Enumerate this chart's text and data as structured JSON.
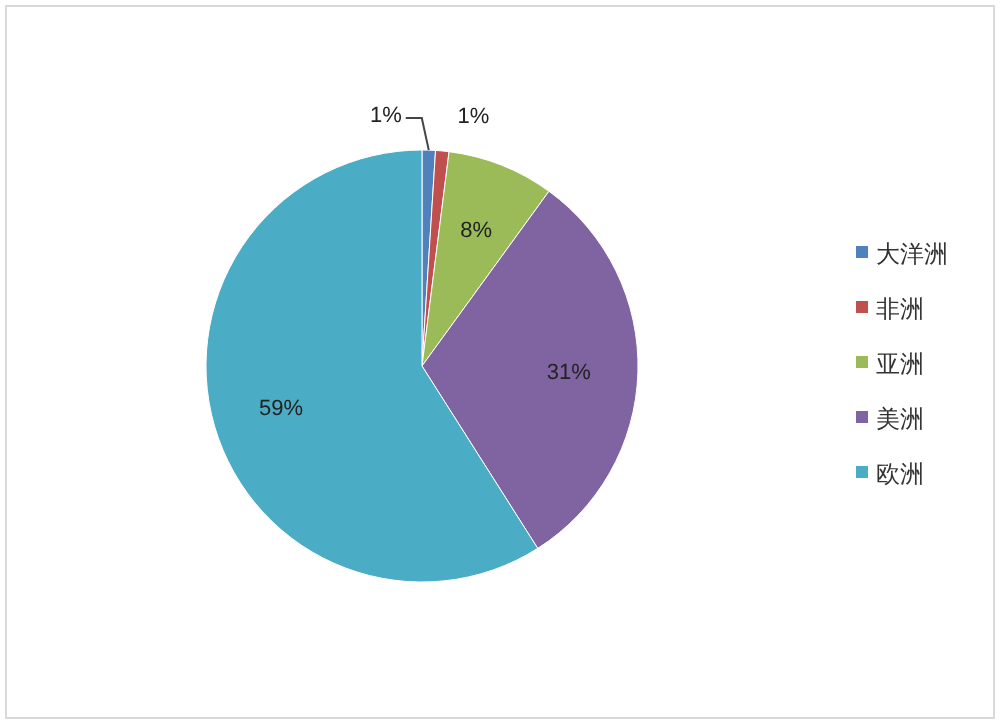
{
  "chart_data": {
    "type": "pie",
    "categories": [
      "大洋洲",
      "非洲",
      "亚洲",
      "美洲",
      "欧洲"
    ],
    "values": [
      1,
      1,
      8,
      31,
      59
    ],
    "value_labels": [
      "1%",
      "1%",
      "8%",
      "31%",
      "59%"
    ],
    "colors": [
      "#4f81bd",
      "#c0504d",
      "#9bbb59",
      "#8064a2",
      "#4bacc6"
    ],
    "legend": "right"
  }
}
